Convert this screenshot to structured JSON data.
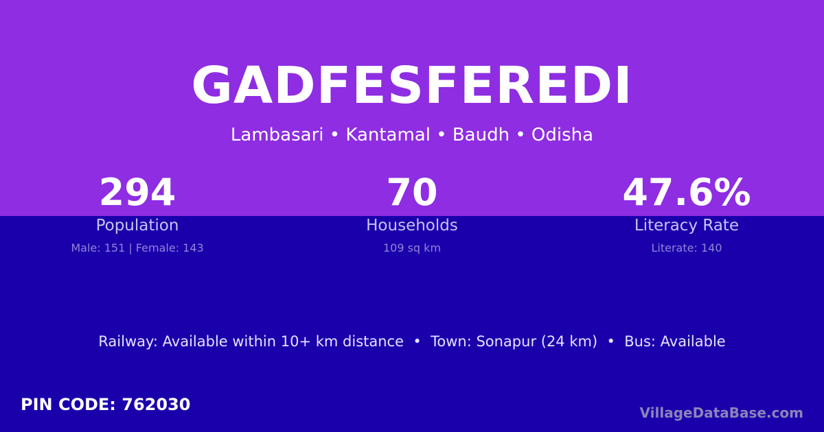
{
  "village": {
    "name": "GADFESFEREDI",
    "location": "Lambasari • Kantamal • Baudh • Odisha"
  },
  "stats": [
    {
      "value": "294",
      "label": "Population",
      "detail": "Male: 151 | Female: 143"
    },
    {
      "value": "70",
      "label": "Households",
      "detail": "109 sq km"
    },
    {
      "value": "47.6%",
      "label": "Literacy Rate",
      "detail": "Literate: 140"
    }
  ],
  "info_line": "Railway: Available within 10+ km distance  •  Town: Sonapur (24 km)  •  Bus: Available",
  "pin_code": "PIN CODE: 762030",
  "brand": "VillageDataBase.com",
  "colors": {
    "top": "#8e2de2",
    "bottom": "#1a00ab"
  }
}
